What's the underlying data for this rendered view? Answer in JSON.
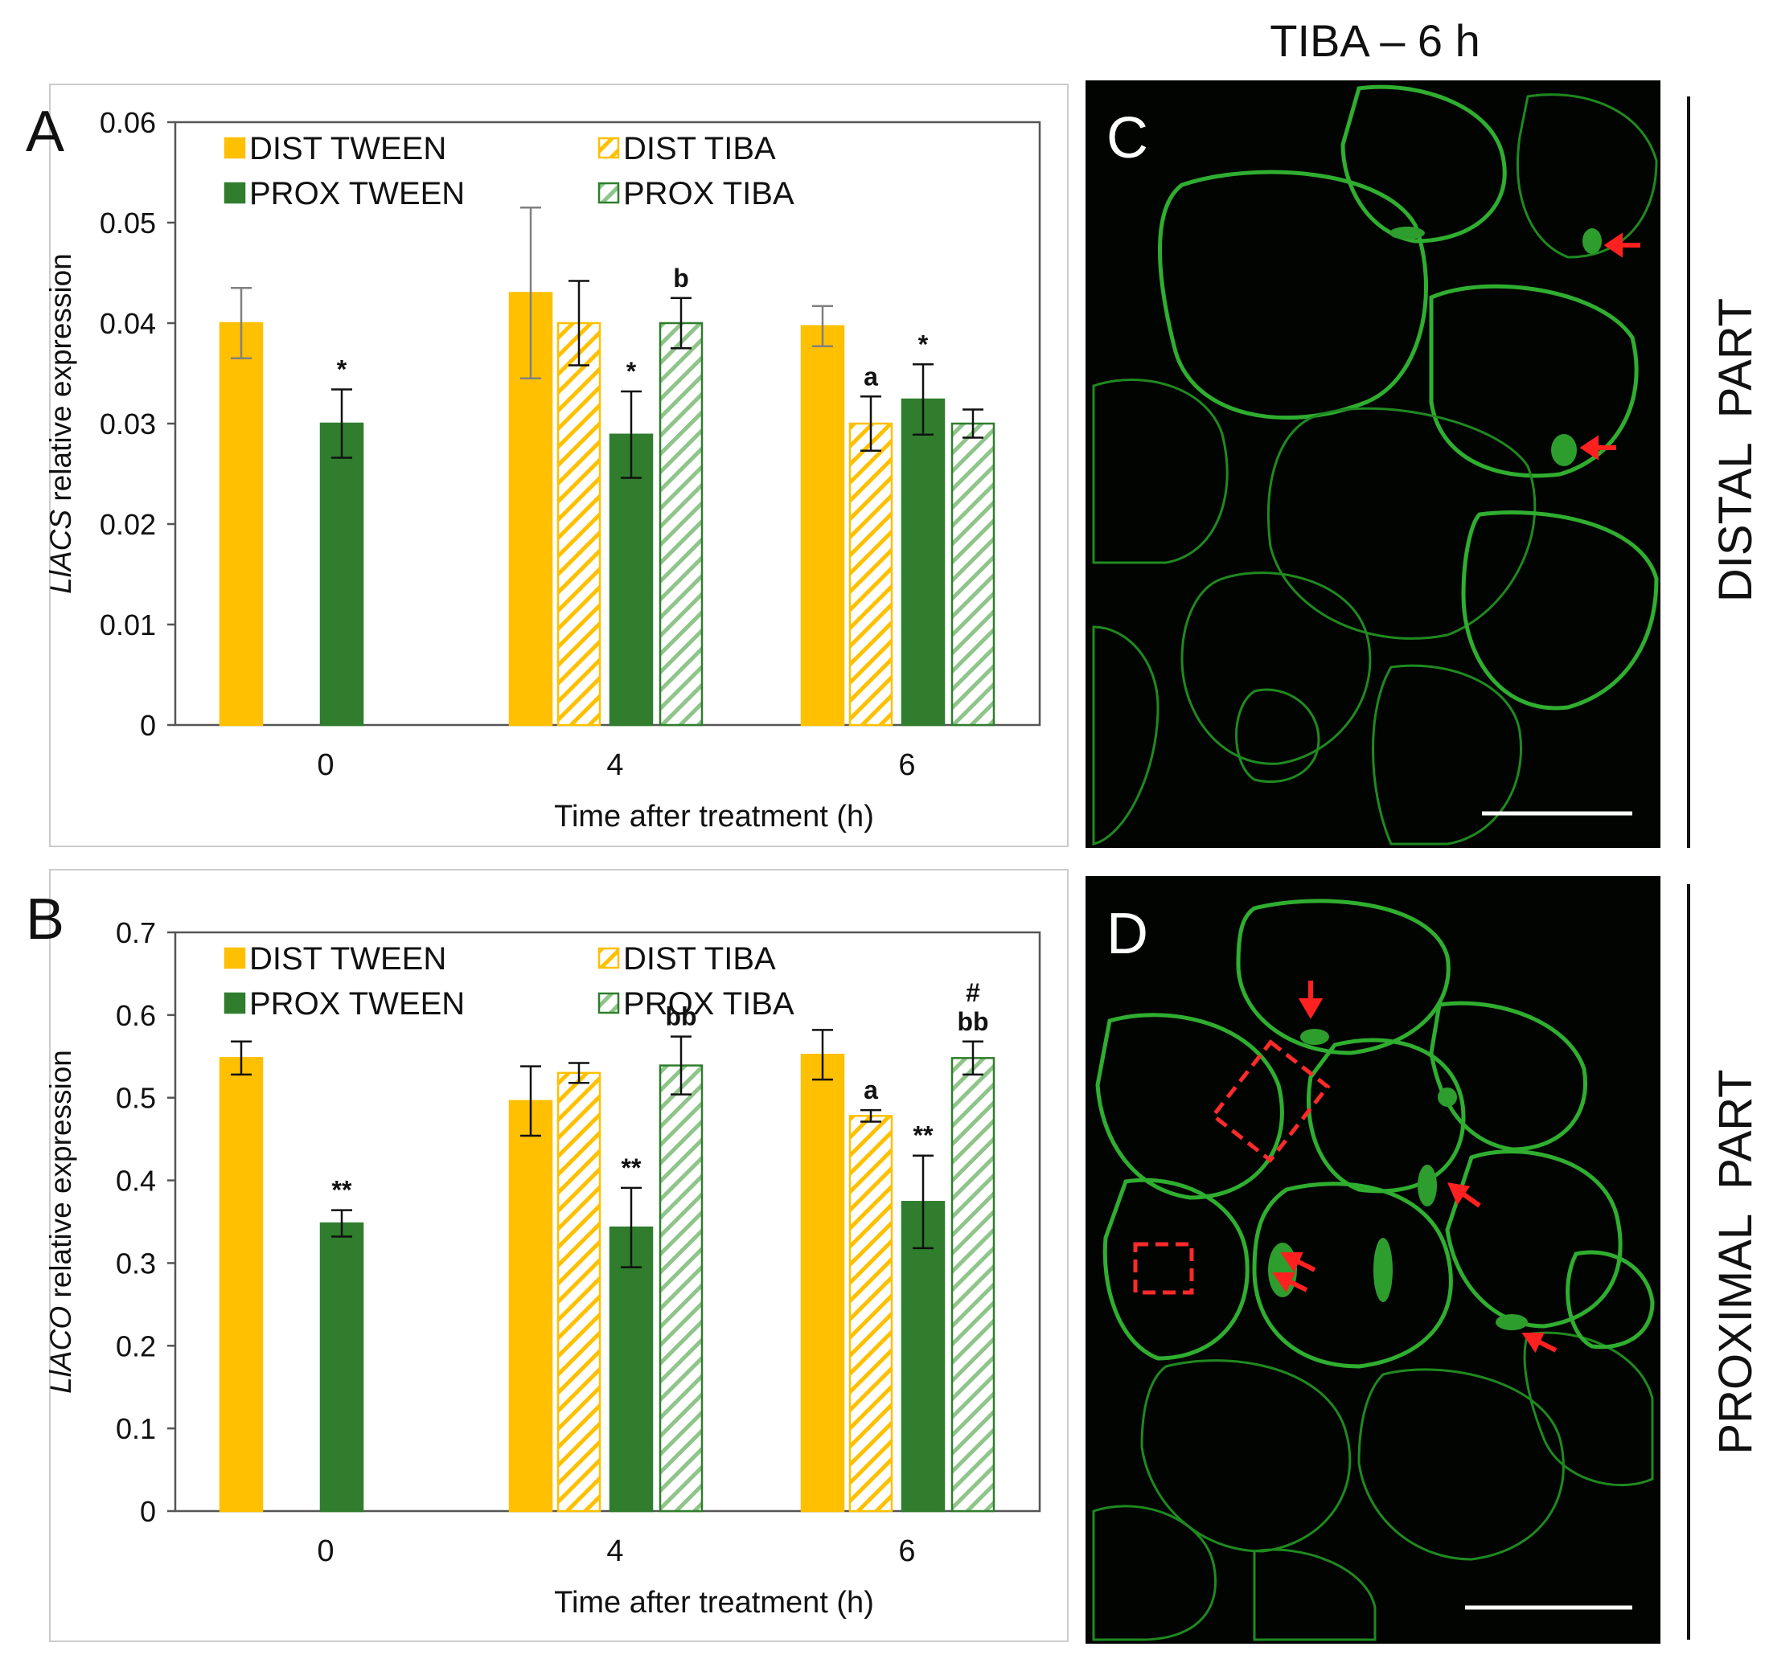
{
  "figure_title": "TIBA – 6 h",
  "side_labels": {
    "distal": "DISTAL  PART",
    "proximal": "PROXIMAL  PART"
  },
  "panel_letters": {
    "c": "C",
    "d": "D"
  },
  "colors": {
    "dist": "#fec000",
    "prox": "#2f7d2d",
    "prox_hatch": "#8fc48a",
    "error_bar_top": "#808080",
    "micro_green": "#2fae2f",
    "arrow_red": "#ff2020"
  },
  "chart_data": [
    {
      "type": "bar",
      "panel": "A",
      "gene": "LlACS",
      "ylabel_italic": "LlACS",
      "ylabel_rest": " relative expression",
      "xlabel": "Time after treatment (h)",
      "categories": [
        "0",
        "4",
        "6"
      ],
      "ylim": [
        0,
        0.06
      ],
      "yticks": [
        0,
        0.01,
        0.02,
        0.03,
        0.04,
        0.05,
        0.06
      ],
      "ytick_labels": [
        "0",
        "0.01",
        "0.02",
        "0.03",
        "0.04",
        "0.05",
        "0.06"
      ],
      "legend": [
        "DIST TWEEN",
        "DIST TIBA",
        "PROX TWEEN",
        "PROX TIBA"
      ],
      "series": [
        {
          "name": "DIST TWEEN",
          "values": [
            0.04,
            0.043,
            0.0397
          ],
          "errors": [
            0.0035,
            0.0085,
            0.002
          ],
          "labels": [
            "",
            "",
            ""
          ]
        },
        {
          "name": "DIST TIBA",
          "values": [
            null,
            0.04,
            0.03
          ],
          "errors": [
            null,
            0.0042,
            0.0027
          ],
          "labels": [
            "",
            "",
            "a"
          ]
        },
        {
          "name": "PROX TWEEN",
          "values": [
            0.03,
            0.0289,
            0.0324
          ],
          "errors": [
            0.0034,
            0.0043,
            0.0035
          ],
          "labels": [
            "*",
            "*",
            "*"
          ]
        },
        {
          "name": "PROX TIBA",
          "values": [
            null,
            0.04,
            0.03
          ],
          "errors": [
            null,
            0.0025,
            0.0014
          ],
          "labels": [
            "",
            "b",
            ""
          ]
        }
      ]
    },
    {
      "type": "bar",
      "panel": "B",
      "gene": "LlACO",
      "ylabel_italic": "LlACO",
      "ylabel_rest": " relative expression",
      "xlabel": "Time after treatment (h)",
      "categories": [
        "0",
        "4",
        "6"
      ],
      "ylim": [
        0,
        0.7
      ],
      "yticks": [
        0,
        0.1,
        0.2,
        0.3,
        0.4,
        0.5,
        0.6,
        0.7
      ],
      "ytick_labels": [
        "0",
        "0.1",
        "0.2",
        "0.3",
        "0.4",
        "0.5",
        "0.6",
        "0.7"
      ],
      "legend": [
        "DIST TWEEN",
        "DIST TIBA",
        "PROX TWEEN",
        "PROX TIBA"
      ],
      "series": [
        {
          "name": "DIST TWEEN",
          "values": [
            0.548,
            0.496,
            0.552
          ],
          "errors": [
            0.02,
            0.042,
            0.03
          ],
          "labels": [
            "",
            "",
            ""
          ]
        },
        {
          "name": "DIST TIBA",
          "values": [
            null,
            0.53,
            0.478
          ],
          "errors": [
            null,
            0.012,
            0.007
          ],
          "labels": [
            "",
            "",
            "a"
          ]
        },
        {
          "name": "PROX TWEEN",
          "values": [
            0.348,
            0.343,
            0.374
          ],
          "errors": [
            0.016,
            0.048,
            0.056
          ],
          "labels": [
            "**",
            "**",
            "**"
          ]
        },
        {
          "name": "PROX TIBA",
          "values": [
            null,
            0.539,
            0.548
          ],
          "errors": [
            null,
            0.035,
            0.02
          ],
          "labels": [
            "",
            "bb",
            "#|bb"
          ]
        }
      ]
    }
  ]
}
